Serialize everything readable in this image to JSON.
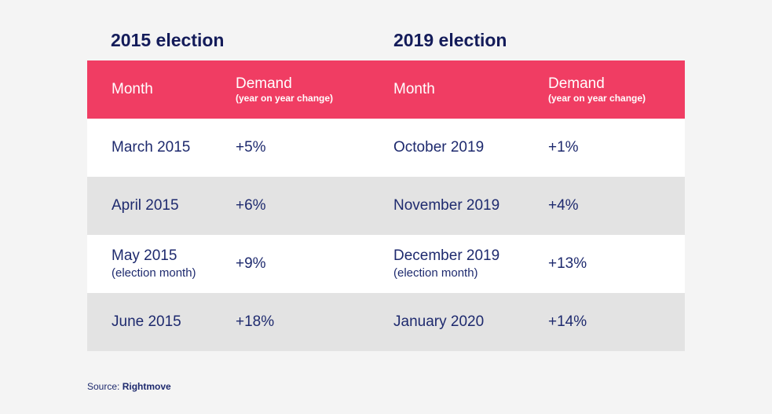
{
  "titles": {
    "left": "2015 election",
    "right": "2019 election"
  },
  "header": {
    "month": "Month",
    "demand": "Demand",
    "demand_sub": "(year on year change)"
  },
  "rows": [
    {
      "m2015": "March 2015",
      "note2015": "",
      "d2015": "+5%",
      "m2019": "October 2019",
      "note2019": "",
      "d2019": "+1%"
    },
    {
      "m2015": "April 2015",
      "note2015": "",
      "d2015": "+6%",
      "m2019": "November 2019",
      "note2019": "",
      "d2019": "+4%"
    },
    {
      "m2015": "May 2015",
      "note2015": "(election month)",
      "d2015": "+9%",
      "m2019": "December 2019",
      "note2019": "(election month)",
      "d2019": "+13%"
    },
    {
      "m2015": "June 2015",
      "note2015": "",
      "d2015": "+18%",
      "m2019": "January 2020",
      "note2019": "",
      "d2019": "+14%"
    }
  ],
  "source": {
    "label": "Source:",
    "name": "Rightmove"
  },
  "colors": {
    "header_bg": "#f03d63",
    "text": "#1e2a6e",
    "alt_row": "#e3e3e3"
  }
}
